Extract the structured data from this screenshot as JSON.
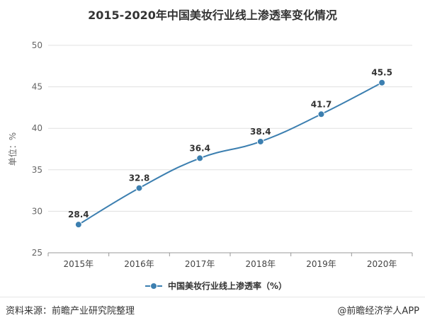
{
  "chart_data": {
    "type": "line",
    "title": "2015-2020年中国美妆行业线上渗透率变化情况",
    "ylabel": "单位：%",
    "xlabel": "",
    "categories": [
      "2015年",
      "2016年",
      "2017年",
      "2018年",
      "2019年",
      "2020年"
    ],
    "series": [
      {
        "name": "中国美妆行业线上渗透率（%）",
        "values": [
          28.4,
          32.8,
          36.4,
          38.4,
          41.7,
          45.5
        ],
        "labels": [
          "28.4",
          "32.8",
          "36.4",
          "38.4",
          "41.7",
          "45.5"
        ],
        "color": "#3c7fb0"
      }
    ],
    "ylim": [
      25,
      50
    ],
    "yticks": [
      "25",
      "30",
      "35",
      "40",
      "45",
      "50"
    ],
    "grid": true,
    "legend": "bottom"
  },
  "footer": {
    "source": "资料来源：前瞻产业研究院整理",
    "brand": "@前瞻经济学人APP"
  }
}
